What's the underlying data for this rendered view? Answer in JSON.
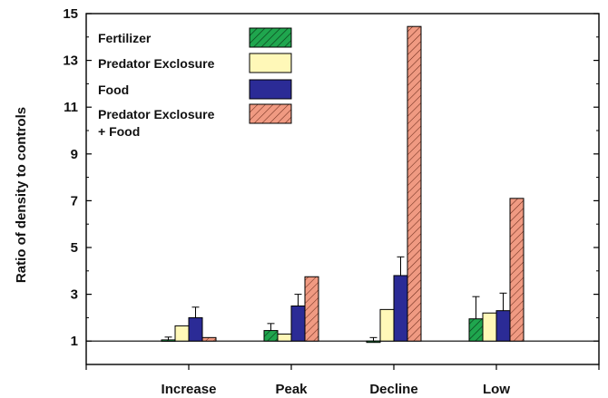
{
  "chart_data": {
    "type": "bar",
    "title": "",
    "xlabel": "",
    "ylabel": "Ratio of density to controls",
    "ylim": [
      0,
      15
    ],
    "yticks": [
      1,
      3,
      5,
      7,
      9,
      11,
      13,
      15
    ],
    "baseline": 1,
    "categories": [
      "Increase",
      "Peak",
      "Decline",
      "Low"
    ],
    "legend_position": "top-left",
    "series": [
      {
        "name": "Fertilizer",
        "color": "#1fa64e",
        "hatch": true,
        "values": [
          1.05,
          1.45,
          1.0,
          1.95
        ],
        "errors": [
          0.12,
          0.3,
          0.15,
          0.95
        ]
      },
      {
        "name": "Predator Exclosure",
        "color": "#fff8b8",
        "hatch": false,
        "values": [
          1.65,
          1.3,
          2.35,
          2.2
        ],
        "errors": [
          null,
          null,
          null,
          null
        ]
      },
      {
        "name": "Food",
        "color": "#2b2b96",
        "hatch": false,
        "values": [
          2.0,
          2.5,
          3.8,
          2.3
        ],
        "errors": [
          0.45,
          0.5,
          0.8,
          0.75
        ]
      },
      {
        "name": "Predator Exclosure\n+ Food",
        "color": "#f09a82",
        "hatch": true,
        "values": [
          1.15,
          3.75,
          14.45,
          7.1
        ],
        "errors": [
          null,
          null,
          null,
          null
        ]
      }
    ]
  }
}
